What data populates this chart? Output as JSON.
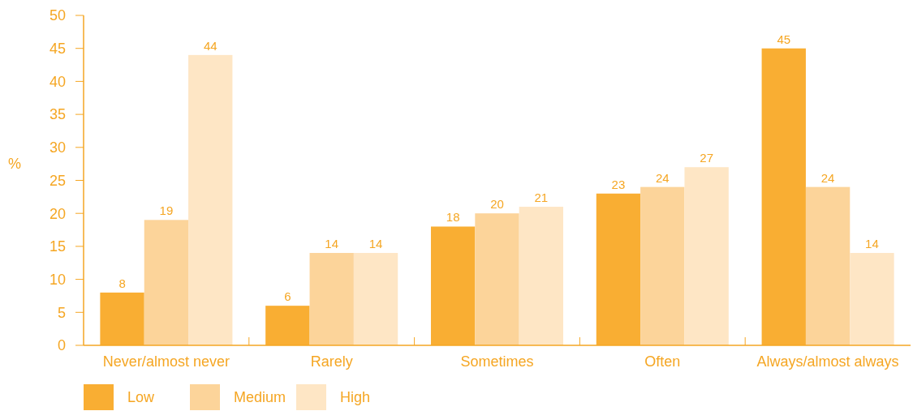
{
  "chart_data": {
    "type": "bar",
    "ylabel": "%",
    "categories": [
      "Never/almost never",
      "Rarely",
      "Sometimes",
      "Often",
      "Always/almost always"
    ],
    "series": [
      {
        "name": "Low",
        "color": "#f9ae33",
        "values": [
          8,
          6,
          18,
          23,
          45
        ]
      },
      {
        "name": "Medium",
        "color": "#fcd49a",
        "values": [
          19,
          14,
          20,
          24,
          24
        ]
      },
      {
        "name": "High",
        "color": "#fee6c5",
        "values": [
          44,
          14,
          21,
          27,
          14
        ]
      }
    ],
    "ylim": [
      0,
      50
    ],
    "yticks": [
      0,
      5,
      10,
      15,
      20,
      25,
      30,
      35,
      40,
      45,
      50
    ],
    "data_labels": true,
    "grid": false,
    "legend": "bottom left"
  }
}
